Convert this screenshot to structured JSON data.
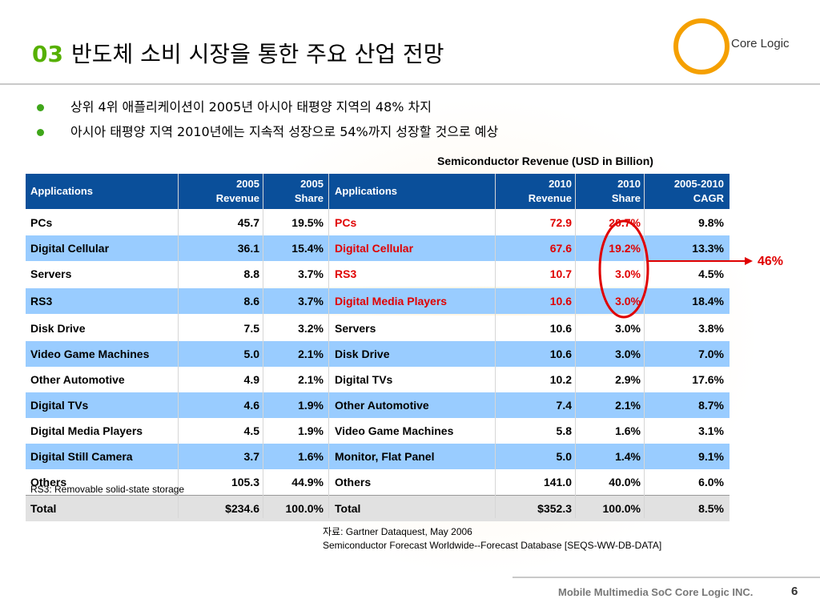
{
  "title": {
    "number": "03",
    "text": "반도체 소비 시장을 통한 주요 산업 전망"
  },
  "logo": {
    "text": "Core Logic"
  },
  "bullets": [
    "상위 4위 애플리케이션이 2005년 아시아 태평양 지역의 48% 차지",
    "아시아 태평양 지역 2010년에는 지속적 성장으로 54%까지 성장할 것으로 예상"
  ],
  "table": {
    "caption": "Semiconductor Revenue (USD in Billion)",
    "headers": {
      "left_app": "Applications",
      "y2005_rev": [
        "2005",
        "Revenue"
      ],
      "y2005_share": [
        "2005",
        "Share"
      ],
      "right_app": "Applications",
      "y2010_rev": [
        "2010",
        "Revenue"
      ],
      "y2010_share": [
        "2010",
        "Share"
      ],
      "cagr": [
        "2005-2010",
        "CAGR"
      ]
    },
    "rows": [
      {
        "l_app": "PCs",
        "l_rev": "45.7",
        "l_share": "19.5%",
        "r_app": "PCs",
        "r_rev": "72.9",
        "r_share": "20.7%",
        "cagr": "9.8%",
        "hl": true
      },
      {
        "l_app": "Digital Cellular",
        "l_rev": "36.1",
        "l_share": "15.4%",
        "r_app": "Digital Cellular",
        "r_rev": "67.6",
        "r_share": "19.2%",
        "cagr": "13.3%",
        "hl": true
      },
      {
        "l_app": "Servers",
        "l_rev": "8.8",
        "l_share": "3.7%",
        "r_app": "RS3",
        "r_rev": "10.7",
        "r_share": "3.0%",
        "cagr": "4.5%",
        "hl": true
      },
      {
        "l_app": "RS3",
        "l_rev": "8.6",
        "l_share": "3.7%",
        "r_app": "Digital Media Players",
        "r_rev": "10.6",
        "r_share": "3.0%",
        "cagr": "18.4%",
        "hl": true
      },
      {
        "l_app": "Disk Drive",
        "l_rev": "7.5",
        "l_share": "3.2%",
        "r_app": "Servers",
        "r_rev": "10.6",
        "r_share": "3.0%",
        "cagr": "3.8%",
        "hl": false
      },
      {
        "l_app": "Video Game Machines",
        "l_rev": "5.0",
        "l_share": "2.1%",
        "r_app": "Disk Drive",
        "r_rev": "10.6",
        "r_share": "3.0%",
        "cagr": "7.0%",
        "hl": false
      },
      {
        "l_app": "Other Automotive",
        "l_rev": "4.9",
        "l_share": "2.1%",
        "r_app": "Digital TVs",
        "r_rev": "10.2",
        "r_share": "2.9%",
        "cagr": "17.6%",
        "hl": false
      },
      {
        "l_app": "Digital TVs",
        "l_rev": "4.6",
        "l_share": "1.9%",
        "r_app": "Other Automotive",
        "r_rev": "7.4",
        "r_share": "2.1%",
        "cagr": "8.7%",
        "hl": false
      },
      {
        "l_app": "Digital Media Players",
        "l_rev": "4.5",
        "l_share": "1.9%",
        "r_app": "Video Game Machines",
        "r_rev": "5.8",
        "r_share": "1.6%",
        "cagr": "3.1%",
        "hl": false
      },
      {
        "l_app": "Digital Still Camera",
        "l_rev": "3.7",
        "l_share": "1.6%",
        "r_app": "Monitor, Flat Panel",
        "r_rev": "5.0",
        "r_share": "1.4%",
        "cagr": "9.1%",
        "hl": false
      },
      {
        "l_app": "Others",
        "l_rev": "105.3",
        "l_share": "44.9%",
        "r_app": "Others",
        "r_rev": "141.0",
        "r_share": "40.0%",
        "cagr": "6.0%",
        "hl": false
      },
      {
        "l_app": "Total",
        "l_rev": "$234.6",
        "l_share": "100.0%",
        "r_app": "Total",
        "r_rev": "$352.3",
        "r_share": "100.0%",
        "cagr": "8.5%",
        "hl": false
      }
    ]
  },
  "callout": "46%",
  "note": "RS3: Removable solid-state storage",
  "source": [
    "자료: Gartner Dataquest, May 2006",
    "Semiconductor Forecast Worldwide--Forecast Database [SEQS-WW-DB-DATA]"
  ],
  "footer": {
    "text": "Mobile Multimedia SoC Core Logic INC.",
    "page": "6"
  },
  "colors": {
    "accent_green": "#56b000",
    "header_blue": "#0a4f9a",
    "row_blue": "#99ccff",
    "highlight_red": "#e00000",
    "logo_orange": "#f5a000"
  }
}
